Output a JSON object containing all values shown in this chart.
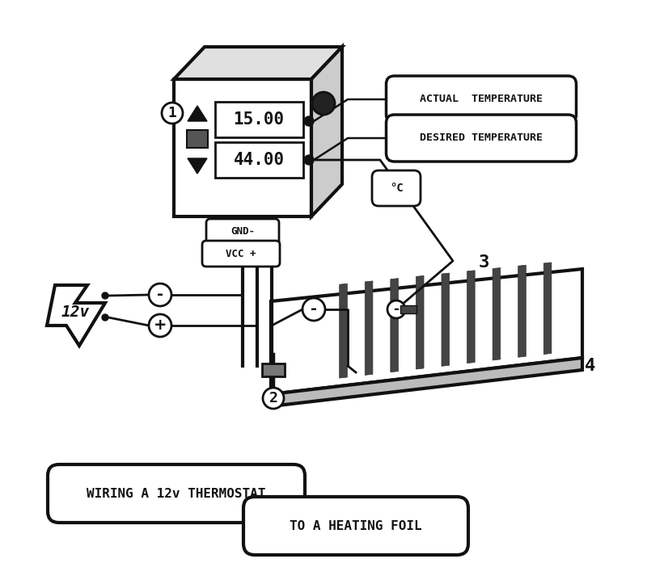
{
  "bg_color": "#ffffff",
  "line_color": "#111111",
  "title1": "WIRING A 12v THERMOSTAT",
  "title2": "TO A HEATING FOIL",
  "label_actual": "ACTUAL  TEMPERATURE",
  "label_desired": "DESIRED TEMPERATURE",
  "label_gnd": "GND-",
  "label_vcc": "VCC +",
  "label_12v": "12v",
  "label_celsius": "°C",
  "display_top": "15.00",
  "display_bottom": "44.00",
  "num1": "1",
  "num2": "2",
  "num3": "3",
  "num4": "4"
}
